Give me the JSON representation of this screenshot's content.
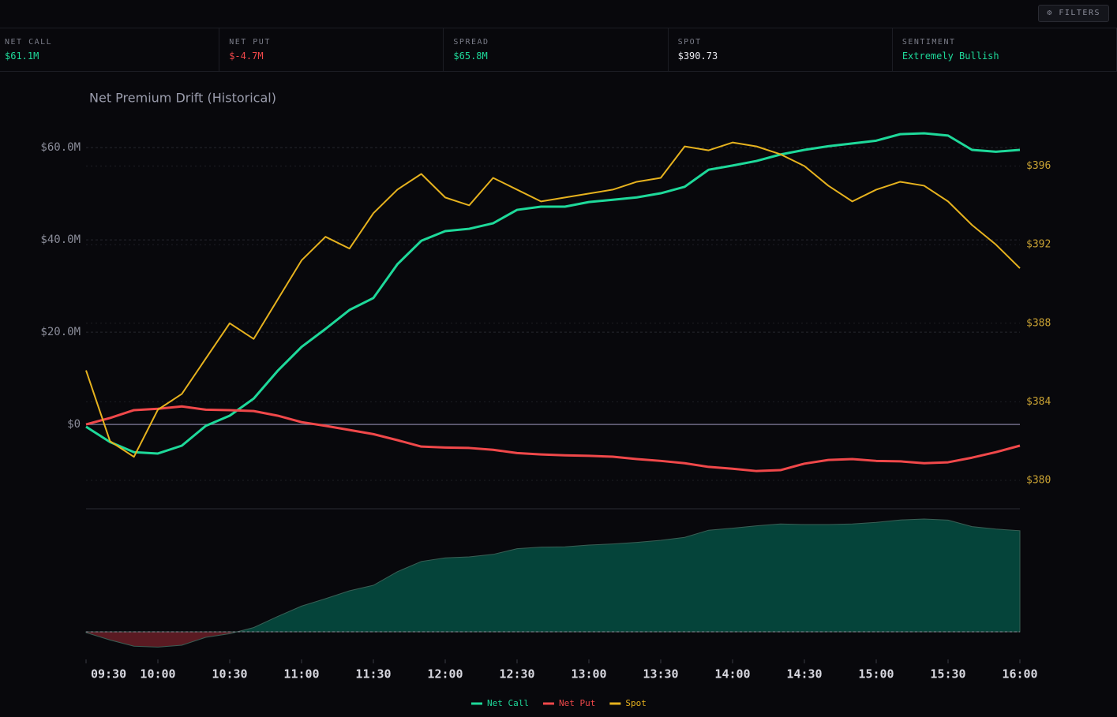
{
  "header": {
    "button": "⚙ FILTERS"
  },
  "kpis": [
    {
      "label": "NET CALL",
      "value": "$61.1M"
    },
    {
      "label": "NET PUT",
      "value": "$-4.7M"
    },
    {
      "label": "SPREAD",
      "value": "$65.8M"
    },
    {
      "label": "SPOT",
      "value": "$390.73"
    },
    {
      "label": "SENTIMENT",
      "value": "Extremely Bullish"
    }
  ],
  "chart_data": [
    {
      "type": "line",
      "title": "Net Premium Drift (Historical)",
      "x": [
        0,
        10,
        20,
        30,
        40,
        50,
        60,
        70,
        80,
        90,
        100,
        110,
        120,
        130,
        140,
        150,
        160,
        170,
        180,
        190,
        200,
        210,
        220,
        230,
        240,
        250,
        260,
        270,
        280,
        290,
        300,
        310,
        320,
        330,
        340,
        350,
        360,
        370,
        380,
        390
      ],
      "xlim": [
        0,
        390
      ],
      "xticks": [
        {
          "value": 0,
          "label": "09:30"
        },
        {
          "value": 30,
          "label": "10:00"
        },
        {
          "value": 60,
          "label": "10:30"
        },
        {
          "value": 90,
          "label": "11:00"
        },
        {
          "value": 120,
          "label": "11:30"
        },
        {
          "value": 150,
          "label": "12:00"
        },
        {
          "value": 180,
          "label": "12:30"
        },
        {
          "value": 210,
          "label": "13:00"
        },
        {
          "value": 240,
          "label": "13:30"
        },
        {
          "value": 270,
          "label": "14:00"
        },
        {
          "value": 300,
          "label": "14:30"
        },
        {
          "value": 330,
          "label": "15:00"
        },
        {
          "value": 360,
          "label": "15:30"
        },
        {
          "value": 390,
          "label": "16:00"
        }
      ],
      "ylim": [
        -14,
        66
      ],
      "yticks": [
        {
          "value": 0,
          "label": "$0"
        },
        {
          "value": 20,
          "label": "$20.0M"
        },
        {
          "value": 40,
          "label": "$40.0M"
        },
        {
          "value": 60,
          "label": "$60.0M"
        }
      ],
      "y2lim": [
        379.56,
        398.35
      ],
      "y2ticks": [
        {
          "value": 380,
          "label": "$380"
        },
        {
          "value": 384,
          "label": "$384"
        },
        {
          "value": 388,
          "label": "$388"
        },
        {
          "value": 392,
          "label": "$392"
        },
        {
          "value": 396,
          "label": "$396"
        }
      ],
      "grid": true,
      "series": [
        {
          "name": "Net Call",
          "color": "#1ed99a",
          "values": [
            -0.5,
            -3.8,
            -6,
            -6.3,
            -4.6,
            -0.3,
            1.9,
            5.6,
            11.6,
            16.8,
            20.7,
            24.8,
            27.4,
            34.7,
            39.8,
            41.9,
            42.4,
            43.6,
            46.5,
            47.2,
            47.2,
            48.2,
            48.7,
            49.2,
            50.1,
            51.5,
            55.2,
            56.1,
            57.1,
            58.5,
            59.5,
            60.3,
            60.9,
            61.5,
            62.9,
            63.1,
            62.6,
            59.5,
            59.1,
            59.5
          ]
        },
        {
          "name": "Net Put",
          "color": "#f0484a",
          "values": [
            0,
            1.4,
            3.1,
            3.4,
            3.9,
            3.2,
            3.1,
            2.9,
            1.9,
            0.5,
            -0.3,
            -1.2,
            -2.1,
            -3.4,
            -4.8,
            -5,
            -5.1,
            -5.5,
            -6.2,
            -6.5,
            -6.7,
            -6.8,
            -7,
            -7.5,
            -7.9,
            -8.4,
            -9.2,
            -9.6,
            -10.1,
            -9.9,
            -8.5,
            -7.7,
            -7.5,
            -7.9,
            -8,
            -8.4,
            -8.2,
            -7.2,
            -6,
            -4.6
          ]
        },
        {
          "name": "Spot",
          "color": "#e6b21e",
          "axis": "y2",
          "values": [
            385.6,
            382,
            381.2,
            383.6,
            384.4,
            386.2,
            388,
            387.2,
            389.2,
            391.2,
            392.4,
            391.8,
            393.6,
            394.8,
            395.6,
            394.4,
            394,
            395.4,
            394.8,
            394.2,
            394.4,
            394.6,
            394.8,
            395.2,
            395.4,
            397,
            396.8,
            397.2,
            397,
            396.6,
            396,
            395,
            394.2,
            394.8,
            395.2,
            395,
            394.2,
            393,
            392,
            390.8
          ]
        }
      ]
    },
    {
      "type": "area",
      "ylim": [
        -17,
        78
      ],
      "color": "#05443a",
      "negative_color": "#5a1a22",
      "values": [
        -0.5,
        -5.2,
        -9.1,
        -9.7,
        -8.5,
        -3.5,
        -1.2,
        2.7,
        9.7,
        16.3,
        21,
        26,
        29.5,
        38.1,
        44.6,
        46.9,
        47.5,
        49.1,
        52.7,
        53.7,
        53.9,
        55,
        55.7,
        56.7,
        58,
        59.9,
        64.4,
        65.7,
        67.2,
        68.4,
        68,
        68,
        68.4,
        69.4,
        70.9,
        71.5,
        70.8,
        66.7,
        65.1,
        64.1
      ]
    }
  ]
}
